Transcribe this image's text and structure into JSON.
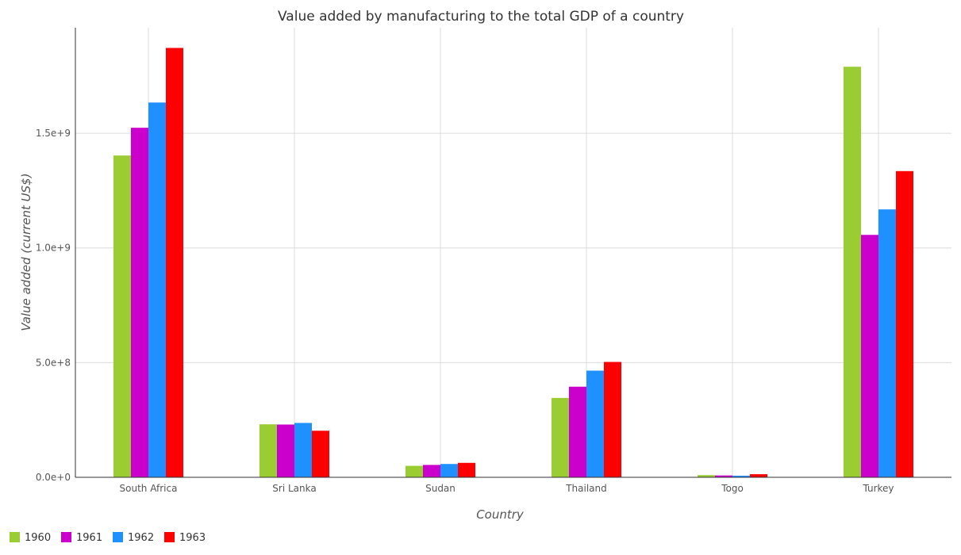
{
  "chart_data": {
    "type": "bar",
    "title": "Value added by manufacturing to the total GDP of a country",
    "xlabel": "Country",
    "ylabel": "Value added (current US$)",
    "categories": [
      "South Africa",
      "Sri Lanka",
      "Sudan",
      "Thailand",
      "Togo",
      "Turkey"
    ],
    "series": [
      {
        "name": "1960",
        "color": "#9acd32",
        "values": [
          1403000000,
          231000000,
          50000000,
          346000000,
          9500000,
          1790000000
        ]
      },
      {
        "name": "1961",
        "color": "#cc00cc",
        "values": [
          1524000000,
          230000000,
          54000000,
          395000000,
          8000000,
          1057000000
        ]
      },
      {
        "name": "1962",
        "color": "#1e90ff",
        "values": [
          1634000000,
          237000000,
          58000000,
          465000000,
          7000000,
          1168000000
        ]
      },
      {
        "name": "1963",
        "color": "#ff0000",
        "values": [
          1872000000,
          203000000,
          63000000,
          503000000,
          13500000,
          1335000000
        ]
      }
    ],
    "ylim": [
      0,
      1960000000
    ],
    "yticks": [
      0,
      500000000,
      1000000000,
      1500000000
    ],
    "ytick_labels": [
      "0.0e+0",
      "5.0e+8",
      "1.0e+9",
      "1.5e+9"
    ],
    "grid": true,
    "legend": "bottom-left"
  }
}
